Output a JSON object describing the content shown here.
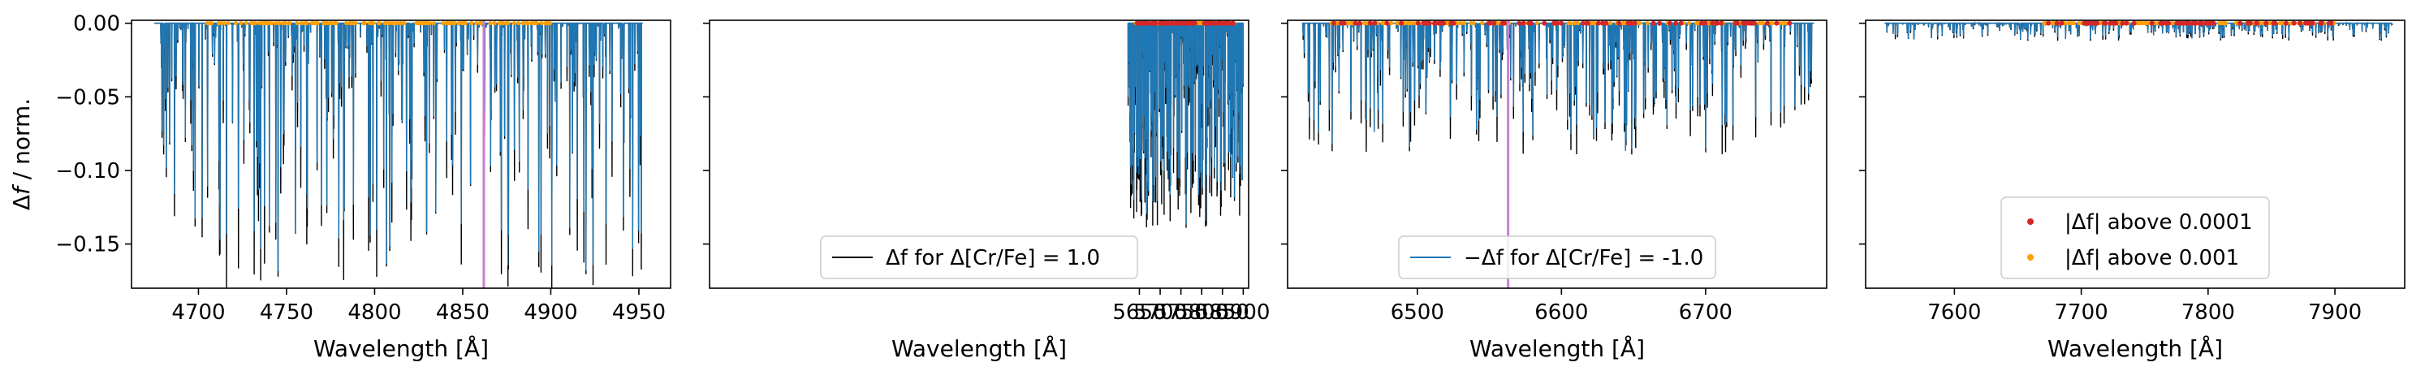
{
  "figure": {
    "ylabel": "Δf / norm.",
    "xlabel": "Wavelength [Å]",
    "yticks": [
      "0.00",
      "−0.05",
      "−0.10",
      "−0.15"
    ]
  },
  "chart_data": [
    {
      "type": "line",
      "panel": 1,
      "xlim": [
        4662,
        4968
      ],
      "ylim": [
        -0.18,
        0.002
      ],
      "xticks": [
        4700,
        4750,
        4800,
        4850,
        4900,
        4950
      ],
      "xlabel": "Wavelength [Å]",
      "ylabel": "Δf / norm.",
      "vertical_line_x": 4862,
      "line_range": [
        4675,
        4952
      ],
      "max_depth": 0.18,
      "dots_range": [
        4705,
        4900
      ],
      "dots_red": false
    },
    {
      "type": "line",
      "panel": 2,
      "xlim": [
        4615,
        5913
      ],
      "ylim": [
        -0.18,
        0.002
      ],
      "xticks": [
        5650,
        5700,
        5750,
        5800,
        5850,
        5900
      ],
      "xlabel": "Wavelength [Å]",
      "vertical_line_x": null,
      "line_range": [
        5622,
        5900
      ],
      "max_depth": 0.14,
      "dots_range": [
        5640,
        5880
      ],
      "dots_red": true,
      "legend": {
        "position": "lower center",
        "label": "Δf for Δ[Cr/Fe] = 1.0",
        "color": "#000000"
      }
    },
    {
      "type": "line",
      "panel": 3,
      "xlim": [
        6410,
        6784
      ],
      "ylim": [
        -0.18,
        0.002
      ],
      "xticks": [
        6500,
        6600,
        6700
      ],
      "xlabel": "Wavelength [Å]",
      "vertical_line_x": 6563,
      "line_range": [
        6420,
        6775
      ],
      "max_depth": 0.09,
      "dots_range": [
        6440,
        6760
      ],
      "dots_red": true,
      "legend": {
        "position": "lower center",
        "label": "−Δf for Δ[Cr/Fe] = -1.0",
        "color": "#1f77b4"
      }
    },
    {
      "type": "line",
      "panel": 4,
      "xlim": [
        7530,
        7955
      ],
      "ylim": [
        -0.18,
        0.002
      ],
      "xticks": [
        7600,
        7700,
        7800,
        7900
      ],
      "xlabel": "Wavelength [Å]",
      "vertical_line_x": null,
      "line_range": [
        7545,
        7945
      ],
      "max_depth": 0.012,
      "dots_range": [
        7670,
        7900
      ],
      "dots_red": true,
      "legend": {
        "position": "lower center",
        "entries": [
          {
            "label": "|Δf| above 0.0001",
            "color": "#d62728"
          },
          {
            "label": "|Δf| above 0.001",
            "color": "#ff9f00"
          }
        ]
      }
    }
  ],
  "colors": {
    "positive_line": "#000000",
    "negative_line": "#1f77b4",
    "vertical_line": "#c97fd0",
    "dot_red": "#d62728",
    "dot_orange": "#ff9f00"
  }
}
